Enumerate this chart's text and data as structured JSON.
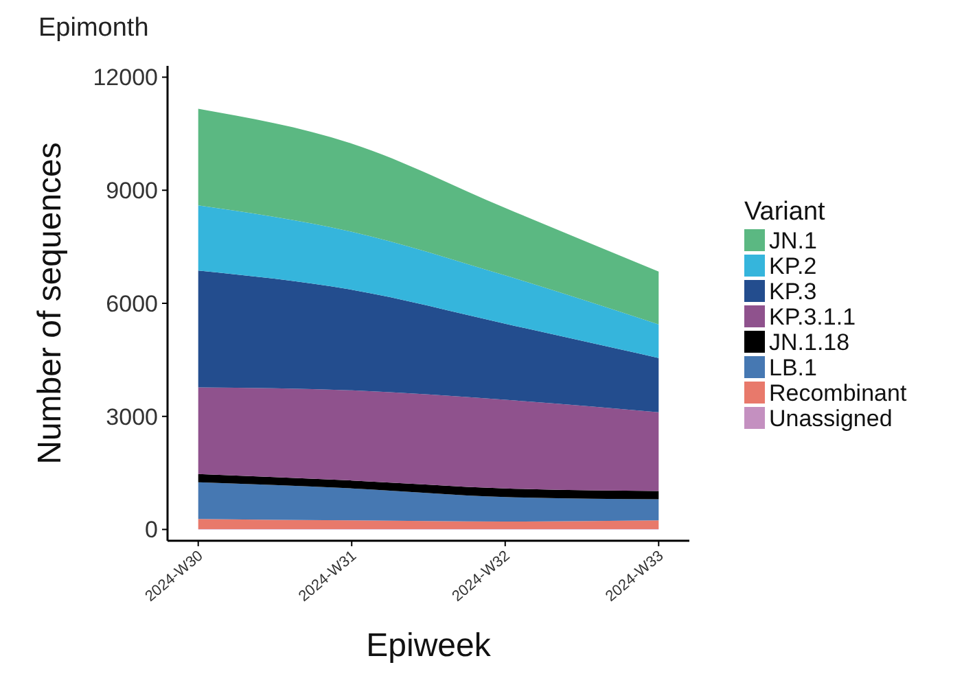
{
  "chart_data": {
    "type": "area",
    "title": "Epimonth",
    "xlabel": "Epiweek",
    "ylabel": "Number of sequences",
    "legend_title": "Variant",
    "stacked": true,
    "legend": "right",
    "grid": false,
    "categories": [
      "2024-W30",
      "2024-W31",
      "2024-W32",
      "2024-W33"
    ],
    "ylim": [
      -300,
      12300
    ],
    "yticks": [
      0,
      3000,
      6000,
      9000,
      12000
    ],
    "series": [
      {
        "name": "Unassigned",
        "color": "#c490c0",
        "values": [
          10,
          10,
          10,
          10
        ]
      },
      {
        "name": "Recombinant",
        "color": "#e8796b",
        "values": [
          270,
          230,
          200,
          230
        ]
      },
      {
        "name": "LB.1",
        "color": "#4678b2",
        "values": [
          970,
          850,
          650,
          560
        ]
      },
      {
        "name": "JN.1.18",
        "color": "#000000",
        "values": [
          220,
          210,
          230,
          220
        ]
      },
      {
        "name": "KP.3.1.1",
        "color": "#8f528d",
        "values": [
          2300,
          2390,
          2350,
          2090
        ]
      },
      {
        "name": "KP.3",
        "color": "#234d8e",
        "values": [
          3100,
          2670,
          2020,
          1440
        ]
      },
      {
        "name": "KP.2",
        "color": "#35b5dc",
        "values": [
          1730,
          1540,
          1280,
          890
        ]
      },
      {
        "name": "JN.1",
        "color": "#5bb882",
        "values": [
          2560,
          2340,
          1790,
          1400
        ]
      }
    ]
  }
}
